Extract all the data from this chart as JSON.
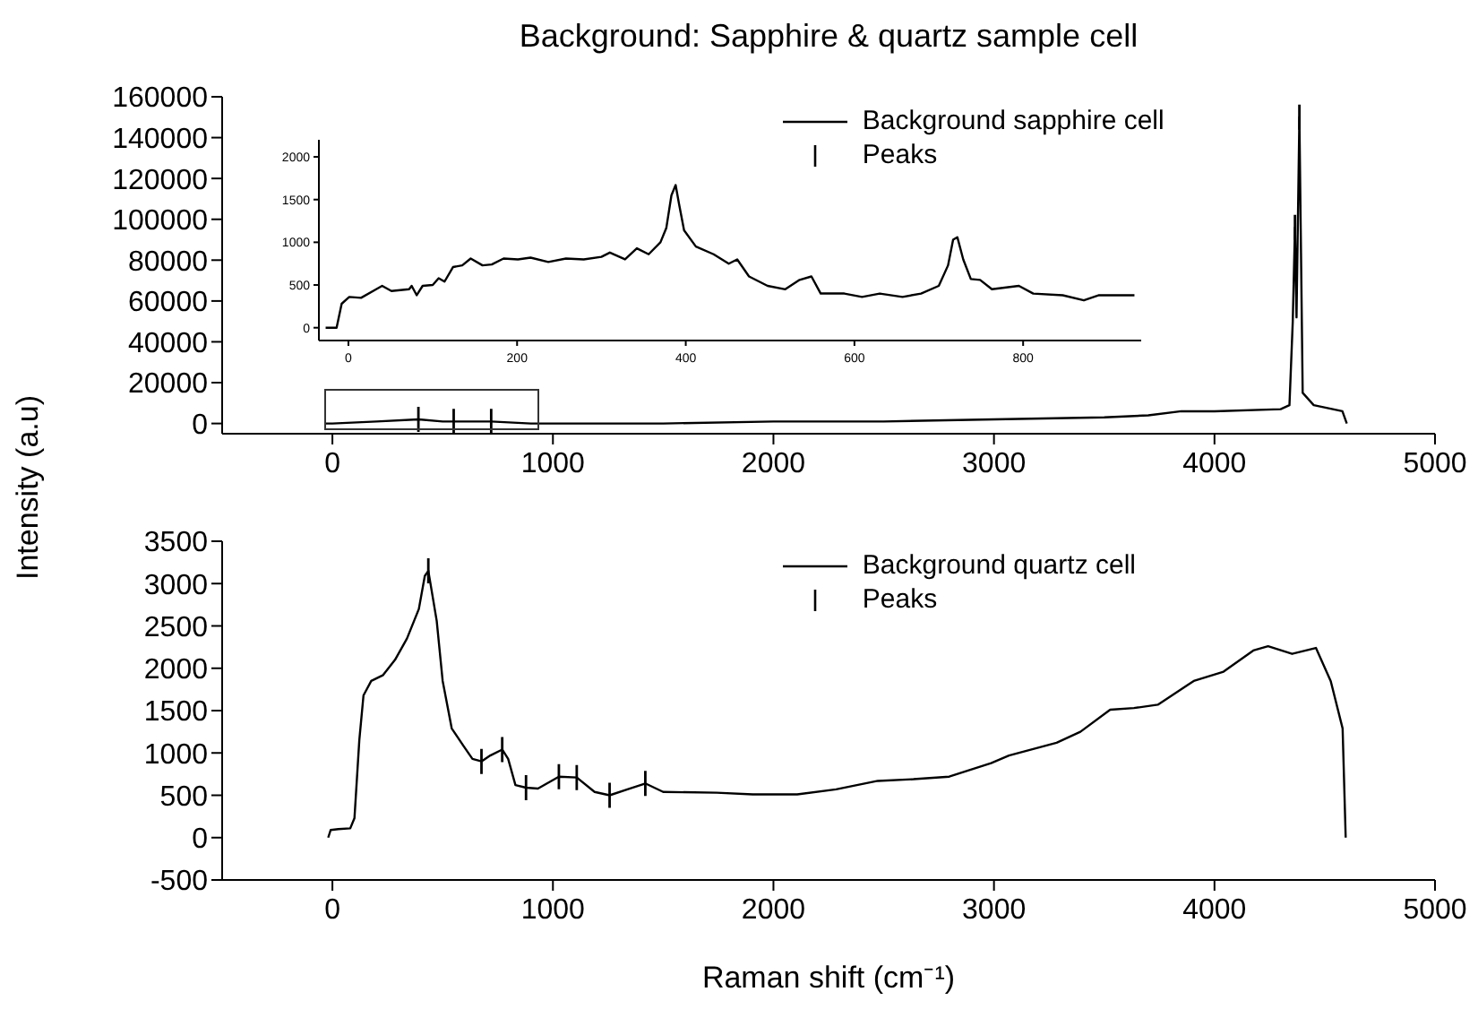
{
  "chart_data": [
    {
      "type": "line",
      "title": "Background: Sapphire & quartz sample cell",
      "ylabel": "Intensity (a.u)",
      "xlim": [
        -500,
        5000
      ],
      "xticks": [
        0,
        1000,
        2000,
        3000,
        4000,
        5000
      ],
      "ylim": [
        -5000,
        160000
      ],
      "yticks": [
        0,
        20000,
        40000,
        60000,
        80000,
        100000,
        120000,
        140000,
        160000
      ],
      "legend": "top",
      "series": [
        {
          "name": "Background sapphire cell",
          "color": "#000000",
          "x": [
            -30,
            0,
            200,
            390,
            500,
            720,
            900,
            1500,
            2000,
            2500,
            3000,
            3500,
            3700,
            3850,
            4000,
            4300,
            4340,
            4355,
            4365,
            4372,
            4385,
            4400,
            4450,
            4580,
            4600
          ],
          "values": [
            0,
            0,
            1000,
            2000,
            1000,
            1000,
            0,
            0,
            1000,
            1000,
            2000,
            3000,
            4000,
            6000,
            6000,
            7000,
            9000,
            50000,
            96000,
            52000,
            150000,
            15000,
            9000,
            6000,
            0
          ]
        },
        {
          "name": "Peaks",
          "type": "scatter",
          "color": "#000000",
          "x": [
            390,
            550,
            720,
            4365,
            4385
          ],
          "values": [
            2000,
            1000,
            1000,
            96000,
            150000
          ]
        }
      ]
    },
    {
      "type": "line",
      "xlim": [
        -35,
        940
      ],
      "xticks": [
        0,
        200,
        400,
        600,
        800
      ],
      "ylim": [
        -150,
        2200
      ],
      "yticks": [
        0,
        500,
        1000,
        1500,
        2000
      ],
      "series": [
        {
          "color": "#000000",
          "x": [
            -27,
            -14,
            -8,
            1,
            15,
            33,
            40,
            51,
            72,
            75,
            81,
            88,
            100,
            107,
            114,
            124,
            135,
            145,
            159,
            170,
            184,
            201,
            216,
            237,
            258,
            279,
            300,
            310,
            328,
            342,
            356,
            370,
            377,
            383,
            388,
            392,
            398,
            412,
            433,
            451,
            461,
            475,
            497,
            518,
            535,
            549,
            560,
            588,
            609,
            630,
            657,
            679,
            700,
            711,
            717,
            722,
            729,
            738,
            749,
            763,
            795,
            812,
            847,
            872,
            890,
            932
          ],
          "values": [
            0,
            0,
            280,
            360,
            350,
            450,
            490,
            430,
            450,
            490,
            380,
            490,
            500,
            580,
            540,
            710,
            730,
            810,
            730,
            740,
            810,
            800,
            820,
            770,
            810,
            800,
            830,
            880,
            800,
            930,
            860,
            1000,
            1170,
            1550,
            1670,
            1450,
            1140,
            950,
            860,
            750,
            800,
            600,
            490,
            450,
            560,
            600,
            400,
            400,
            360,
            400,
            360,
            400,
            490,
            730,
            1030,
            1060,
            800,
            570,
            560,
            450,
            490,
            400,
            380,
            320,
            380,
            380
          ]
        }
      ]
    },
    {
      "type": "line",
      "xlabel": "Raman shift (cm⁻¹)",
      "xlim": [
        -500,
        5000
      ],
      "xticks": [
        0,
        1000,
        2000,
        3000,
        4000,
        5000
      ],
      "ylim": [
        -500,
        3500
      ],
      "yticks": [
        -500,
        0,
        500,
        1000,
        1500,
        2000,
        2500,
        3000,
        3500
      ],
      "legend": "top",
      "series": [
        {
          "name": "Background quartz cell",
          "color": "#000000",
          "x": [
            -19,
            -8,
            27,
            81,
            100,
            122,
            141,
            176,
            230,
            284,
            338,
            392,
            419,
            435,
            446,
            473,
            500,
            541,
            595,
            635,
            676,
            716,
            770,
            797,
            830,
            878,
            932,
            1027,
            1108,
            1189,
            1257,
            1338,
            1419,
            1500,
            1743,
            1906,
            2108,
            2284,
            2473,
            2635,
            2797,
            2987,
            3068,
            3284,
            3392,
            3527,
            3635,
            3743,
            3906,
            4041,
            4176,
            4243,
            4352,
            4460,
            4527,
            4581,
            4595
          ],
          "values": [
            0,
            90,
            100,
            110,
            230,
            1150,
            1680,
            1850,
            1920,
            2100,
            2350,
            2700,
            3090,
            3150,
            2980,
            2560,
            1850,
            1290,
            1080,
            930,
            900,
            970,
            1040,
            930,
            620,
            590,
            580,
            720,
            710,
            540,
            500,
            570,
            640,
            540,
            530,
            510,
            510,
            570,
            670,
            690,
            720,
            880,
            970,
            1120,
            1250,
            1510,
            1530,
            1570,
            1850,
            1960,
            2210,
            2260,
            2170,
            2240,
            1850,
            1290,
            0
          ]
        },
        {
          "name": "Peaks",
          "type": "scatter",
          "color": "#000000",
          "x": [
            435,
            676,
            770,
            878,
            1027,
            1108,
            1257,
            1419
          ],
          "values": [
            3150,
            900,
            1040,
            590,
            720,
            710,
            500,
            640
          ]
        }
      ]
    }
  ]
}
